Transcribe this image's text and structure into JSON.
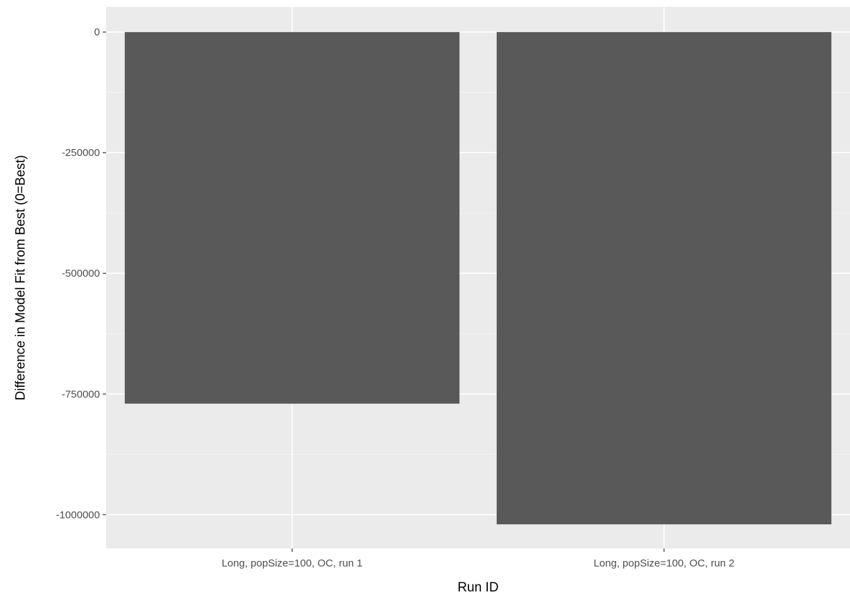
{
  "chart_data": {
    "type": "bar",
    "categories": [
      "Long, popSize=100, OC, run 1",
      "Long, popSize=100, OC, run 2"
    ],
    "values": [
      -770000,
      -1020000
    ],
    "title": "",
    "xlabel": "Run ID",
    "ylabel": "Difference in Model Fit from Best (0=Best)",
    "ylim": [
      -1070000,
      52000
    ],
    "yticks": [
      0,
      -250000,
      -500000,
      -750000,
      -1000000
    ],
    "ytick_labels": [
      "0",
      "-250000",
      "-500000",
      "-750000",
      "-1000000"
    ],
    "grid": true,
    "legend": "none",
    "colors": {
      "panel_background": "#ebebeb",
      "grid_major": "#ffffff",
      "bar_fill": "#595959",
      "tick_text": "#4d4d4d",
      "axis_title_text": "#000000"
    }
  }
}
